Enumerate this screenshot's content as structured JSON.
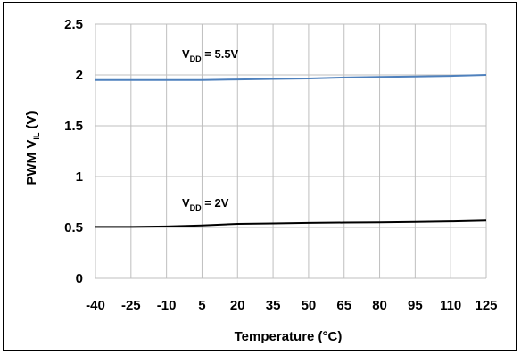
{
  "chart_data": {
    "type": "line",
    "xlabel": "Temperature (°C)",
    "ylabel_main": "PWM V",
    "ylabel_sub": "IL",
    "ylabel_unit": " (V)",
    "categories": [
      "-40",
      "-25",
      "-10",
      "5",
      "20",
      "35",
      "50",
      "65",
      "80",
      "95",
      "110",
      "125"
    ],
    "x": [
      -40,
      -25,
      -10,
      5,
      20,
      35,
      50,
      65,
      80,
      95,
      110,
      125
    ],
    "ylim": [
      0,
      2.5
    ],
    "yticks": [
      "0",
      "0.5",
      "1",
      "1.5",
      "2",
      "2.5"
    ],
    "grid": true,
    "series": [
      {
        "label_main": "V",
        "label_sub": "DD",
        "label_rest": " = 5.5V",
        "color": "#4f81bd",
        "values": [
          1.95,
          1.95,
          1.95,
          1.95,
          1.955,
          1.96,
          1.965,
          1.975,
          1.98,
          1.985,
          1.99,
          2.0
        ]
      },
      {
        "label_main": "V",
        "label_sub": "DD",
        "label_rest": " = 2V",
        "color": "#000000",
        "values": [
          0.505,
          0.505,
          0.51,
          0.52,
          0.535,
          0.54,
          0.545,
          0.548,
          0.55,
          0.555,
          0.56,
          0.568
        ]
      }
    ]
  }
}
